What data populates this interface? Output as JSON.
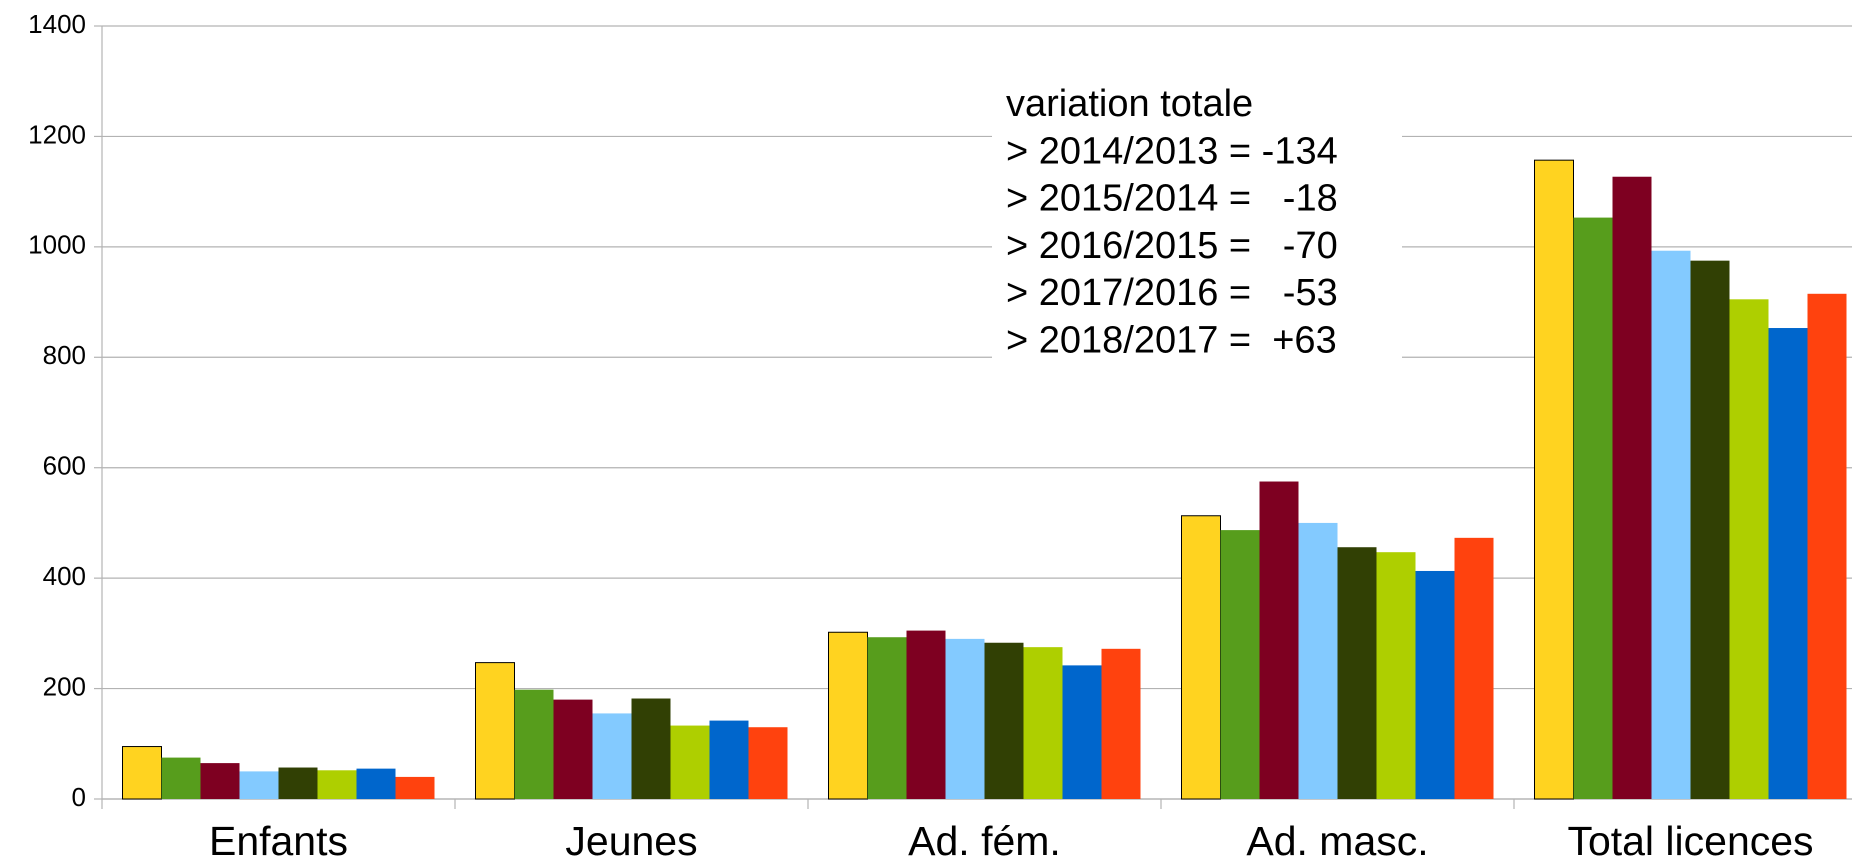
{
  "chart_data": {
    "type": "bar",
    "categories": [
      "Enfants",
      "Jeunes",
      "Ad. fém.",
      "Ad. masc.",
      "Total licences"
    ],
    "series": [
      {
        "color": "#ffd320",
        "values": [
          95,
          247,
          302,
          513,
          1157
        ]
      },
      {
        "color": "#579d1c",
        "values": [
          75,
          198,
          293,
          487,
          1053
        ]
      },
      {
        "color": "#7e0021",
        "values": [
          65,
          180,
          305,
          575,
          1127
        ]
      },
      {
        "color": "#83caff",
        "values": [
          50,
          155,
          290,
          500,
          993
        ]
      },
      {
        "color": "#314004",
        "values": [
          57,
          182,
          283,
          456,
          975
        ]
      },
      {
        "color": "#aecf00",
        "values": [
          52,
          133,
          275,
          447,
          905
        ]
      },
      {
        "color": "#0066cc",
        "values": [
          55,
          142,
          242,
          413,
          853
        ]
      },
      {
        "color": "#ff420e",
        "values": [
          40,
          130,
          272,
          473,
          915
        ]
      }
    ],
    "ylim": [
      0,
      1400
    ],
    "yticks": [
      0,
      200,
      400,
      600,
      800,
      1000,
      1200,
      1400
    ],
    "grid": true,
    "annotation": [
      "variation totale",
      "> 2014/2013 = -134",
      "> 2015/2014 =   -18",
      "> 2016/2015 =   -70",
      "> 2017/2016 =   -53",
      "> 2018/2017 =  +63"
    ]
  }
}
